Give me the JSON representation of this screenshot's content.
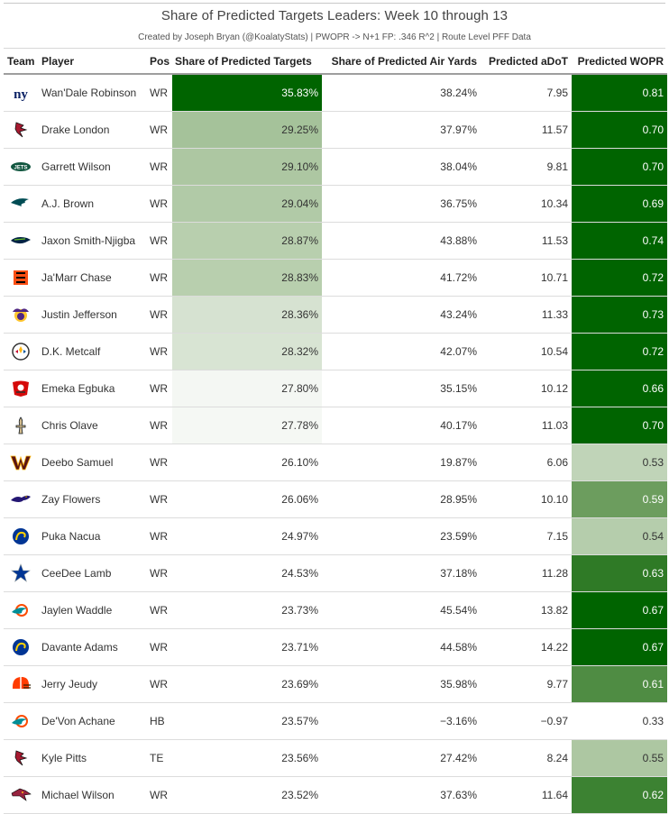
{
  "title": "Share of Predicted Targets Leaders: Week 10 through 13",
  "subtitle": "Created by Joseph Bryan (@KoalatyStats) | PWOPR -> N+1 FP: .346 R^2 | Route Level PFF Data",
  "chart_data": {
    "type": "table",
    "title": "Share of Predicted Targets Leaders: Week 10 through 13",
    "subtitle": "Created by Joseph Bryan (@KoalatyStats) | PWOPR -> N+1 FP: .346 R^2 | Route Level PFF Data",
    "columns": [
      "Team",
      "Player",
      "Pos",
      "Share of Predicted Targets",
      "Share of Predicted Air Yards",
      "Predicted aDoT",
      "Predicted WOPR"
    ],
    "rows": [
      {
        "team": "NYG",
        "player": "Wan'Dale Robinson",
        "pos": "WR",
        "spt": "35.83%",
        "spay": "38.24%",
        "adot": "7.95",
        "wopr": "0.81",
        "spt_bg": "#006400",
        "wopr_bg": "#006400",
        "spt_dark": true,
        "wopr_dark": true
      },
      {
        "team": "ATL",
        "player": "Drake London",
        "pos": "WR",
        "spt": "29.25%",
        "spay": "37.97%",
        "adot": "11.57",
        "wopr": "0.70",
        "spt_bg": "#a5c29a",
        "wopr_bg": "#006400",
        "spt_dark": false,
        "wopr_dark": true
      },
      {
        "team": "NYJ",
        "player": "Garrett Wilson",
        "pos": "WR",
        "spt": "29.10%",
        "spay": "38.04%",
        "adot": "9.81",
        "wopr": "0.70",
        "spt_bg": "#adc7a2",
        "wopr_bg": "#006400",
        "spt_dark": false,
        "wopr_dark": true
      },
      {
        "team": "PHI",
        "player": "A.J. Brown",
        "pos": "WR",
        "spt": "29.04%",
        "spay": "36.75%",
        "adot": "10.34",
        "wopr": "0.69",
        "spt_bg": "#b1caa7",
        "wopr_bg": "#006400",
        "spt_dark": false,
        "wopr_dark": true
      },
      {
        "team": "SEA",
        "player": "Jaxon Smith-Njigba",
        "pos": "WR",
        "spt": "28.87%",
        "spay": "43.88%",
        "adot": "11.53",
        "wopr": "0.74",
        "spt_bg": "#b8cfae",
        "wopr_bg": "#006400",
        "spt_dark": false,
        "wopr_dark": true
      },
      {
        "team": "CIN",
        "player": "Ja'Marr Chase",
        "pos": "WR",
        "spt": "28.83%",
        "spay": "41.72%",
        "adot": "10.71",
        "wopr": "0.72",
        "spt_bg": "#b8cfae",
        "wopr_bg": "#006400",
        "spt_dark": false,
        "wopr_dark": true
      },
      {
        "team": "MIN",
        "player": "Justin Jefferson",
        "pos": "WR",
        "spt": "28.36%",
        "spay": "43.24%",
        "adot": "11.33",
        "wopr": "0.73",
        "spt_bg": "#d6e2d1",
        "wopr_bg": "#006400",
        "spt_dark": false,
        "wopr_dark": true
      },
      {
        "team": "PIT",
        "player": "D.K. Metcalf",
        "pos": "WR",
        "spt": "28.32%",
        "spay": "42.07%",
        "adot": "10.54",
        "wopr": "0.72",
        "spt_bg": "#d8e4d3",
        "wopr_bg": "#006400",
        "spt_dark": false,
        "wopr_dark": true
      },
      {
        "team": "TB",
        "player": "Emeka Egbuka",
        "pos": "WR",
        "spt": "27.80%",
        "spay": "35.15%",
        "adot": "10.12",
        "wopr": "0.66",
        "spt_bg": "#f4f7f3",
        "wopr_bg": "#006400",
        "spt_dark": false,
        "wopr_dark": true
      },
      {
        "team": "NO",
        "player": "Chris Olave",
        "pos": "WR",
        "spt": "27.78%",
        "spay": "40.17%",
        "adot": "11.03",
        "wopr": "0.70",
        "spt_bg": "#f5f8f4",
        "wopr_bg": "#006400",
        "spt_dark": false,
        "wopr_dark": true
      },
      {
        "team": "WAS",
        "player": "Deebo Samuel",
        "pos": "WR",
        "spt": "26.10%",
        "spay": "19.87%",
        "adot": "6.06",
        "wopr": "0.53",
        "spt_bg": "#ffffff",
        "wopr_bg": "#c0d4b8",
        "spt_dark": false,
        "wopr_dark": false
      },
      {
        "team": "BAL",
        "player": "Zay Flowers",
        "pos": "WR",
        "spt": "26.06%",
        "spay": "28.95%",
        "adot": "10.10",
        "wopr": "0.59",
        "spt_bg": "#ffffff",
        "wopr_bg": "#6c9d5e",
        "spt_dark": false,
        "wopr_dark": true
      },
      {
        "team": "LAR",
        "player": "Puka Nacua",
        "pos": "WR",
        "spt": "24.97%",
        "spay": "23.59%",
        "adot": "7.15",
        "wopr": "0.54",
        "spt_bg": "#ffffff",
        "wopr_bg": "#b5cdac",
        "spt_dark": false,
        "wopr_dark": false
      },
      {
        "team": "DAL",
        "player": "CeeDee Lamb",
        "pos": "WR",
        "spt": "24.53%",
        "spay": "37.18%",
        "adot": "11.28",
        "wopr": "0.63",
        "spt_bg": "#ffffff",
        "wopr_bg": "#2f7a26",
        "spt_dark": false,
        "wopr_dark": true
      },
      {
        "team": "MIA",
        "player": "Jaylen Waddle",
        "pos": "WR",
        "spt": "23.73%",
        "spay": "45.54%",
        "adot": "13.82",
        "wopr": "0.67",
        "spt_bg": "#ffffff",
        "wopr_bg": "#006400",
        "spt_dark": false,
        "wopr_dark": true
      },
      {
        "team": "LAR",
        "player": "Davante Adams",
        "pos": "WR",
        "spt": "23.71%",
        "spay": "44.58%",
        "adot": "14.22",
        "wopr": "0.67",
        "spt_bg": "#ffffff",
        "wopr_bg": "#006400",
        "spt_dark": false,
        "wopr_dark": true
      },
      {
        "team": "CLE",
        "player": "Jerry Jeudy",
        "pos": "WR",
        "spt": "23.69%",
        "spay": "35.98%",
        "adot": "9.77",
        "wopr": "0.61",
        "spt_bg": "#ffffff",
        "wopr_bg": "#4f8c43",
        "spt_dark": false,
        "wopr_dark": true
      },
      {
        "team": "MIA",
        "player": "De'Von Achane",
        "pos": "HB",
        "spt": "23.57%",
        "spay": "−3.16%",
        "adot": "−0.97",
        "wopr": "0.33",
        "spt_bg": "#ffffff",
        "wopr_bg": "#ffffff",
        "spt_dark": false,
        "wopr_dark": false
      },
      {
        "team": "ATL",
        "player": "Kyle Pitts",
        "pos": "TE",
        "spt": "23.56%",
        "spay": "27.42%",
        "adot": "8.24",
        "wopr": "0.55",
        "spt_bg": "#ffffff",
        "wopr_bg": "#adc7a2",
        "spt_dark": false,
        "wopr_dark": false
      },
      {
        "team": "ARI",
        "player": "Michael Wilson",
        "pos": "WR",
        "spt": "23.52%",
        "spay": "37.63%",
        "adot": "11.64",
        "wopr": "0.62",
        "spt_bg": "#ffffff",
        "wopr_bg": "#3c8232",
        "spt_dark": false,
        "wopr_dark": true
      }
    ]
  }
}
